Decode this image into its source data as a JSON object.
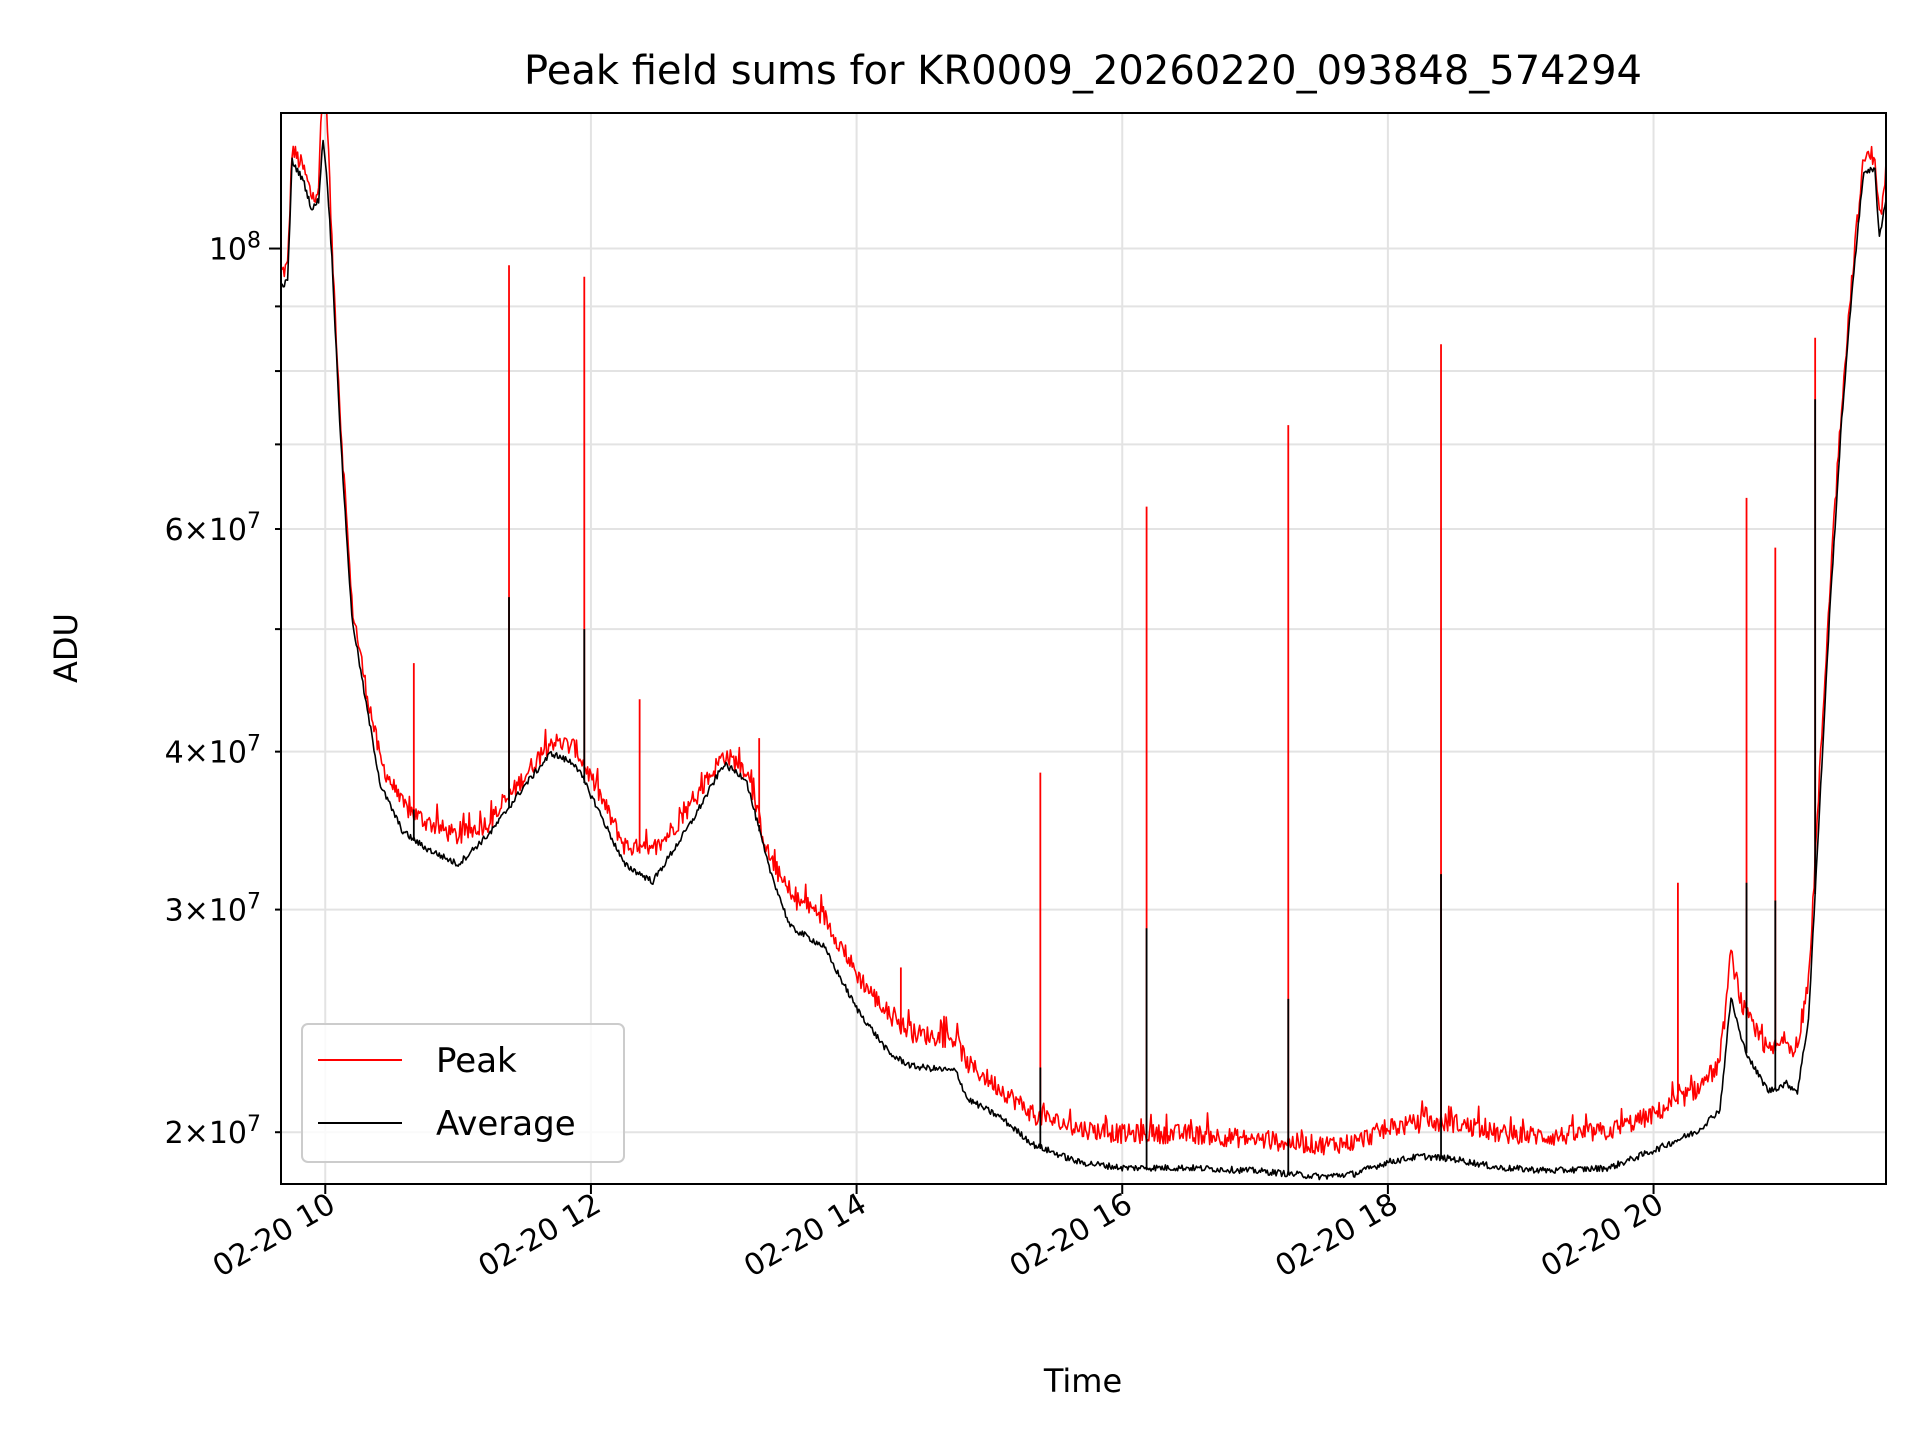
{
  "chart_data": {
    "type": "line",
    "title": "Peak field sums for KR0009_20260220_093848_574294",
    "xlabel": "Time",
    "ylabel": "ADU",
    "y_scale": "log",
    "ylim": [
      18200000,
      128000000
    ],
    "xlim": [
      "02-20 09:40",
      "02-20 21:45"
    ],
    "grid": true,
    "legend_position": "lower-left",
    "x_ticks": [
      {
        "value": "02-20 10:00",
        "label": "02-20 10"
      },
      {
        "value": "02-20 12:00",
        "label": "02-20 12"
      },
      {
        "value": "02-20 14:00",
        "label": "02-20 14"
      },
      {
        "value": "02-20 16:00",
        "label": "02-20 16"
      },
      {
        "value": "02-20 18:00",
        "label": "02-20 18"
      },
      {
        "value": "02-20 20:00",
        "label": "02-20 20"
      }
    ],
    "y_major_ticks": [
      {
        "value": 100000000,
        "label": "10^8"
      }
    ],
    "y_minor_ticks": [
      {
        "value": 20000000,
        "label": "2×10^7"
      },
      {
        "value": 30000000,
        "label": "3×10^7"
      },
      {
        "value": 40000000,
        "label": "4×10^7"
      },
      {
        "value": 60000000,
        "label": "6×10^7"
      },
      {
        "value": 50000000,
        "label": ""
      },
      {
        "value": 70000000,
        "label": ""
      },
      {
        "value": 80000000,
        "label": ""
      },
      {
        "value": 90000000,
        "label": ""
      }
    ],
    "series": [
      {
        "name": "Peak",
        "color": "#ff0000",
        "points": [
          [
            "02-20 09:40",
            95000000
          ],
          [
            "02-20 09:43",
            96000000
          ],
          [
            "02-20 09:45",
            119000000
          ],
          [
            "02-20 09:50",
            115000000
          ],
          [
            "02-20 09:54",
            109000000
          ],
          [
            "02-20 09:57",
            111000000
          ],
          [
            "02-20 09:59",
            135000000
          ],
          [
            "02-20 10:01",
            125000000
          ],
          [
            "02-20 10:03",
            100000000
          ],
          [
            "02-20 10:07",
            72000000
          ],
          [
            "02-20 10:12",
            52000000
          ],
          [
            "02-20 10:18",
            45000000
          ],
          [
            "02-20 10:25",
            39000000
          ],
          [
            "02-20 10:35",
            36000000
          ],
          [
            "02-20 10:45",
            35000000
          ],
          [
            "02-20 11:00",
            34000000
          ],
          [
            "02-20 11:15",
            35000000
          ],
          [
            "02-20 11:30",
            38000000
          ],
          [
            "02-20 11:42",
            40500000
          ],
          [
            "02-20 11:53",
            40000000
          ],
          [
            "02-20 12:03",
            37000000
          ],
          [
            "02-20 12:15",
            33500000
          ],
          [
            "02-20 12:28",
            33000000
          ],
          [
            "02-20 12:45",
            36000000
          ],
          [
            "02-20 13:00",
            39500000
          ],
          [
            "02-20 13:10",
            38500000
          ],
          [
            "02-20 13:20",
            33000000
          ],
          [
            "02-20 13:30",
            30500000
          ],
          [
            "02-20 13:45",
            29500000
          ],
          [
            "02-20 14:00",
            26500000
          ],
          [
            "02-20 14:15",
            24500000
          ],
          [
            "02-20 14:25",
            23800000
          ],
          [
            "02-20 14:45",
            23500000
          ],
          [
            "02-20 14:50",
            22500000
          ],
          [
            "02-20 15:05",
            21500000
          ],
          [
            "02-20 15:20",
            20500000
          ],
          [
            "02-20 15:40",
            20000000
          ],
          [
            "02-20 16:00",
            19800000
          ],
          [
            "02-20 16:30",
            19800000
          ],
          [
            "02-20 17:00",
            19600000
          ],
          [
            "02-20 17:30",
            19400000
          ],
          [
            "02-20 17:45",
            19500000
          ],
          [
            "02-20 18:00",
            20000000
          ],
          [
            "02-20 18:15",
            20200000
          ],
          [
            "02-20 18:30",
            20200000
          ],
          [
            "02-20 18:50",
            19800000
          ],
          [
            "02-20 19:15",
            19700000
          ],
          [
            "02-20 19:40",
            19900000
          ],
          [
            "02-20 20:00",
            20500000
          ],
          [
            "02-20 20:20",
            21500000
          ],
          [
            "02-20 20:30",
            22500000
          ],
          [
            "02-20 20:35",
            27500000
          ],
          [
            "02-20 20:40",
            25000000
          ],
          [
            "02-20 20:45",
            24000000
          ],
          [
            "02-20 20:52",
            23000000
          ],
          [
            "02-20 21:00",
            23500000
          ],
          [
            "02-20 21:05",
            23000000
          ],
          [
            "02-20 21:10",
            26000000
          ],
          [
            "02-20 21:15",
            38000000
          ],
          [
            "02-20 21:20",
            55000000
          ],
          [
            "02-20 21:25",
            75000000
          ],
          [
            "02-20 21:30",
            96000000
          ],
          [
            "02-20 21:35",
            117000000
          ],
          [
            "02-20 21:40",
            118000000
          ],
          [
            "02-20 21:42",
            105000000
          ],
          [
            "02-20 21:45",
            112000000
          ]
        ],
        "spikes": [
          [
            "02-20 10:40",
            47000000
          ],
          [
            "02-20 11:23",
            97000000
          ],
          [
            "02-20 11:57",
            95000000
          ],
          [
            "02-20 12:22",
            44000000
          ],
          [
            "02-20 13:16",
            41000000
          ],
          [
            "02-20 14:20",
            27000000
          ],
          [
            "02-20 15:23",
            38500000
          ],
          [
            "02-20 16:11",
            62500000
          ],
          [
            "02-20 17:15",
            72500000
          ],
          [
            "02-20 18:24",
            84000000
          ],
          [
            "02-20 20:11",
            31500000
          ],
          [
            "02-20 20:42",
            63500000
          ],
          [
            "02-20 20:55",
            58000000
          ],
          [
            "02-20 21:13",
            85000000
          ]
        ]
      },
      {
        "name": "Average",
        "color": "#000000",
        "points": [
          [
            "02-20 09:40",
            93000000
          ],
          [
            "02-20 09:43",
            94000000
          ],
          [
            "02-20 09:45",
            117000000
          ],
          [
            "02-20 09:50",
            113000000
          ],
          [
            "02-20 09:54",
            107000000
          ],
          [
            "02-20 09:57",
            109000000
          ],
          [
            "02-20 09:59",
            122000000
          ],
          [
            "02-20 10:01",
            112000000
          ],
          [
            "02-20 10:03",
            98000000
          ],
          [
            "02-20 10:07",
            70000000
          ],
          [
            "02-20 10:12",
            51000000
          ],
          [
            "02-20 10:18",
            44000000
          ],
          [
            "02-20 10:25",
            37500000
          ],
          [
            "02-20 10:35",
            34500000
          ],
          [
            "02-20 10:45",
            33500000
          ],
          [
            "02-20 11:00",
            32500000
          ],
          [
            "02-20 11:15",
            34500000
          ],
          [
            "02-20 11:30",
            37500000
          ],
          [
            "02-20 11:42",
            39800000
          ],
          [
            "02-20 11:53",
            39000000
          ],
          [
            "02-20 12:03",
            36000000
          ],
          [
            "02-20 12:15",
            32500000
          ],
          [
            "02-20 12:28",
            31500000
          ],
          [
            "02-20 12:45",
            35000000
          ],
          [
            "02-20 13:00",
            39000000
          ],
          [
            "02-20 13:10",
            38000000
          ],
          [
            "02-20 13:20",
            32500000
          ],
          [
            "02-20 13:30",
            29000000
          ],
          [
            "02-20 13:45",
            28000000
          ],
          [
            "02-20 14:00",
            25000000
          ],
          [
            "02-20 14:15",
            23000000
          ],
          [
            "02-20 14:25",
            22500000
          ],
          [
            "02-20 14:45",
            22300000
          ],
          [
            "02-20 14:50",
            21200000
          ],
          [
            "02-20 15:05",
            20500000
          ],
          [
            "02-20 15:20",
            19500000
          ],
          [
            "02-20 15:40",
            18900000
          ],
          [
            "02-20 16:00",
            18700000
          ],
          [
            "02-20 16:30",
            18700000
          ],
          [
            "02-20 17:00",
            18600000
          ],
          [
            "02-20 17:30",
            18400000
          ],
          [
            "02-20 17:45",
            18500000
          ],
          [
            "02-20 18:00",
            18900000
          ],
          [
            "02-20 18:15",
            19100000
          ],
          [
            "02-20 18:30",
            19000000
          ],
          [
            "02-20 18:50",
            18700000
          ],
          [
            "02-20 19:15",
            18600000
          ],
          [
            "02-20 19:40",
            18700000
          ],
          [
            "02-20 20:00",
            19300000
          ],
          [
            "02-20 20:20",
            20000000
          ],
          [
            "02-20 20:30",
            20800000
          ],
          [
            "02-20 20:35",
            25500000
          ],
          [
            "02-20 20:40",
            23500000
          ],
          [
            "02-20 20:45",
            22500000
          ],
          [
            "02-20 20:52",
            21500000
          ],
          [
            "02-20 21:00",
            21800000
          ],
          [
            "02-20 21:05",
            21500000
          ],
          [
            "02-20 21:10",
            24500000
          ],
          [
            "02-20 21:15",
            36000000
          ],
          [
            "02-20 21:20",
            53000000
          ],
          [
            "02-20 21:25",
            73000000
          ],
          [
            "02-20 21:30",
            94000000
          ],
          [
            "02-20 21:35",
            115000000
          ],
          [
            "02-20 21:40",
            115000000
          ],
          [
            "02-20 21:42",
            102000000
          ],
          [
            "02-20 21:45",
            109000000
          ]
        ],
        "spikes": [
          [
            "02-20 10:40",
            36000000
          ],
          [
            "02-20 11:23",
            53000000
          ],
          [
            "02-20 11:57",
            50000000
          ],
          [
            "02-20 13:16",
            35000000
          ],
          [
            "02-20 15:23",
            22500000
          ],
          [
            "02-20 16:11",
            29000000
          ],
          [
            "02-20 17:15",
            25500000
          ],
          [
            "02-20 18:24",
            32000000
          ],
          [
            "02-20 20:42",
            31500000
          ],
          [
            "02-20 20:55",
            30500000
          ],
          [
            "02-20 21:13",
            76000000
          ]
        ]
      }
    ]
  }
}
